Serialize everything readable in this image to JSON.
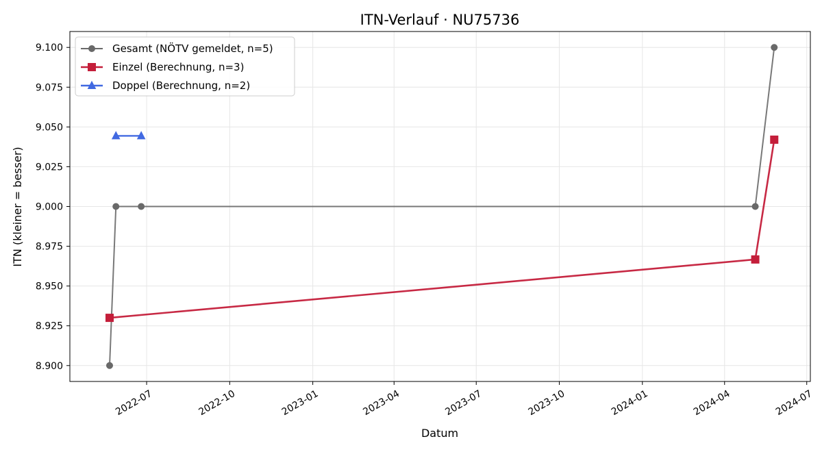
{
  "chart_data": {
    "type": "line",
    "title": "ITN-Verlauf · NU75736",
    "xlabel": "Datum",
    "ylabel": "ITN  (kleiner = besser)",
    "x_type": "date",
    "xlim": [
      "2022-04-07",
      "2024-07-05"
    ],
    "ylim": [
      8.89,
      9.11
    ],
    "x_ticks": [
      "2022-07-01",
      "2022-10-01",
      "2023-01-01",
      "2023-04-01",
      "2023-07-01",
      "2023-10-01",
      "2024-01-01",
      "2024-04-01",
      "2024-07-01"
    ],
    "x_tick_labels": [
      "2022-07",
      "2022-10",
      "2023-01",
      "2023-04",
      "2023-07",
      "2023-10",
      "2024-01",
      "2024-04",
      "2024-07"
    ],
    "y_ticks": [
      8.9,
      8.925,
      8.95,
      8.975,
      9.0,
      9.025,
      9.05,
      9.075,
      9.1
    ],
    "y_tick_labels": [
      "8.900",
      "8.925",
      "8.950",
      "8.975",
      "9.000",
      "9.025",
      "9.050",
      "9.075",
      "9.100"
    ],
    "grid": true,
    "legend_position": "top-left",
    "series": [
      {
        "name": "Gesamt (NÖTV gemeldet, n=5)",
        "color": "#696969",
        "marker": "circle",
        "points": [
          {
            "x": "2022-05-21",
            "y": 8.9
          },
          {
            "x": "2022-05-28",
            "y": 9.0
          },
          {
            "x": "2022-06-25",
            "y": 9.0
          },
          {
            "x": "2024-05-05",
            "y": 9.0
          },
          {
            "x": "2024-05-26",
            "y": 9.1
          }
        ]
      },
      {
        "name": "Einzel (Berechnung, n=3)",
        "color": "#c41e3a",
        "marker": "square",
        "points": [
          {
            "x": "2022-05-21",
            "y": 8.93
          },
          {
            "x": "2024-05-05",
            "y": 8.9667
          },
          {
            "x": "2024-05-26",
            "y": 9.042
          }
        ]
      },
      {
        "name": "Doppel (Berechnung, n=2)",
        "color": "#4169e1",
        "marker": "triangle",
        "points": [
          {
            "x": "2022-05-28",
            "y": 9.0444
          },
          {
            "x": "2022-06-25",
            "y": 9.0444
          }
        ]
      }
    ]
  }
}
